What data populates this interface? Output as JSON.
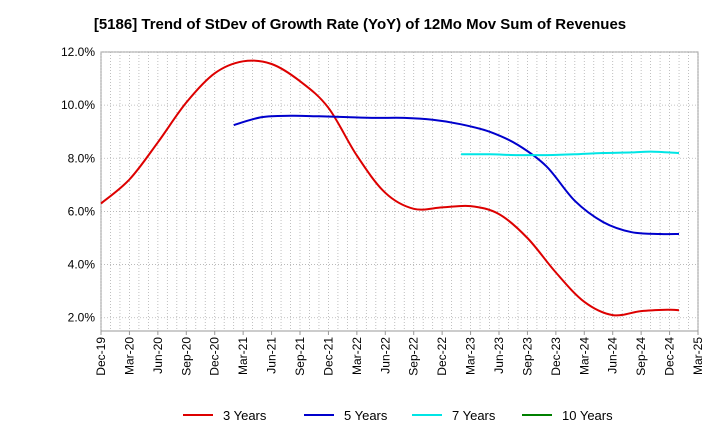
{
  "chart_data": {
    "type": "line",
    "title": "[5186]  Trend of StDev of Growth Rate (YoY) of 12Mo Mov Sum of Revenues",
    "xlabel": "",
    "ylabel": "",
    "ylim": [
      1.5,
      12.0
    ],
    "y_ticks": [
      2.0,
      4.0,
      6.0,
      8.0,
      10.0,
      12.0
    ],
    "y_tick_labels": [
      "2.0%",
      "4.0%",
      "6.0%",
      "8.0%",
      "10.0%",
      "12.0%"
    ],
    "x_tick_labels": [
      "Dec-19",
      "Mar-20",
      "Jun-20",
      "Sep-20",
      "Dec-20",
      "Mar-21",
      "Jun-21",
      "Sep-21",
      "Dec-21",
      "Mar-22",
      "Jun-22",
      "Sep-22",
      "Dec-22",
      "Mar-23",
      "Jun-23",
      "Sep-23",
      "Dec-23",
      "Mar-24",
      "Jun-24",
      "Sep-24",
      "Dec-24",
      "Mar-25"
    ],
    "x_range": [
      0,
      63
    ],
    "grid": true,
    "legend_position": "bottom",
    "series": [
      {
        "name": "3 Years",
        "color": "#dd0000",
        "points": [
          [
            0,
            6.3
          ],
          [
            3,
            7.2
          ],
          [
            6,
            8.6
          ],
          [
            9,
            10.1
          ],
          [
            12,
            11.2
          ],
          [
            15,
            11.65
          ],
          [
            18,
            11.55
          ],
          [
            21,
            10.9
          ],
          [
            24,
            9.9
          ],
          [
            27,
            8.1
          ],
          [
            30,
            6.7
          ],
          [
            33,
            6.1
          ],
          [
            36,
            6.15
          ],
          [
            39,
            6.2
          ],
          [
            42,
            5.9
          ],
          [
            45,
            5.0
          ],
          [
            48,
            3.7
          ],
          [
            51,
            2.6
          ],
          [
            54,
            2.1
          ],
          [
            57,
            2.25
          ],
          [
            60,
            2.3
          ],
          [
            61,
            2.28
          ]
        ]
      },
      {
        "name": "5 Years",
        "color": "#0000cc",
        "points": [
          [
            14,
            9.25
          ],
          [
            17,
            9.55
          ],
          [
            20,
            9.6
          ],
          [
            23,
            9.58
          ],
          [
            26,
            9.55
          ],
          [
            29,
            9.52
          ],
          [
            32,
            9.52
          ],
          [
            35,
            9.45
          ],
          [
            38,
            9.28
          ],
          [
            41,
            9.0
          ],
          [
            44,
            8.5
          ],
          [
            47,
            7.7
          ],
          [
            50,
            6.4
          ],
          [
            53,
            5.6
          ],
          [
            56,
            5.22
          ],
          [
            59,
            5.15
          ],
          [
            61,
            5.15
          ]
        ]
      },
      {
        "name": "7 Years",
        "color": "#00e5e5",
        "points": [
          [
            38,
            8.15
          ],
          [
            41,
            8.15
          ],
          [
            44,
            8.12
          ],
          [
            47,
            8.12
          ],
          [
            50,
            8.15
          ],
          [
            53,
            8.2
          ],
          [
            56,
            8.22
          ],
          [
            58,
            8.25
          ],
          [
            61,
            8.2
          ]
        ]
      },
      {
        "name": "10 Years",
        "color": "#008000",
        "points": []
      }
    ]
  }
}
